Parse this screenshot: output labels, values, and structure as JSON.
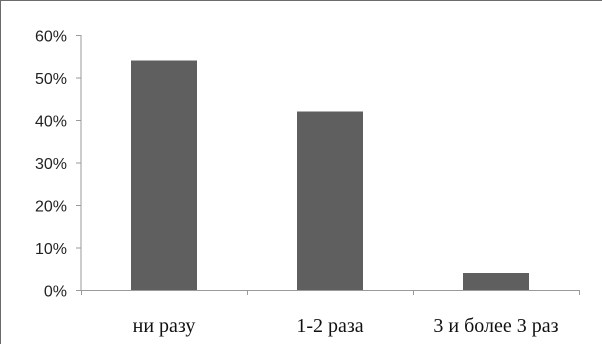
{
  "chart_data": {
    "type": "bar",
    "categories": [
      "ни разу",
      "1-2 раза",
      "3 и более 3 раз"
    ],
    "values": [
      54,
      42,
      4
    ],
    "ylim": [
      0,
      60
    ],
    "yticks": [
      0,
      10,
      20,
      30,
      40,
      50,
      60
    ],
    "ytick_labels": [
      "0%",
      "10%",
      "20%",
      "30%",
      "40%",
      "50%",
      "60%"
    ],
    "grid": false,
    "legend": "none",
    "bar_color": "#5f5f5f",
    "axis_color": "#9a9a9a"
  }
}
